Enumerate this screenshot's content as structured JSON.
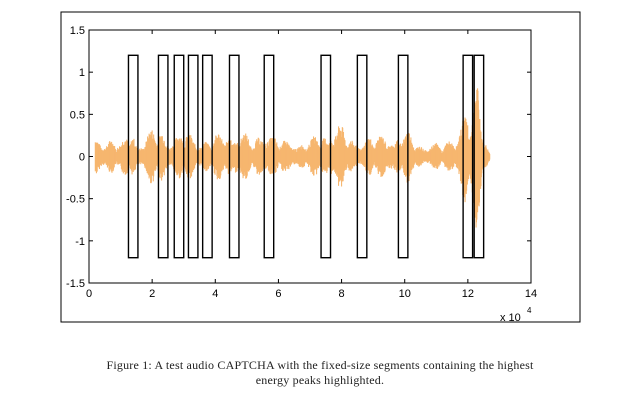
{
  "chart_data": {
    "type": "line",
    "xlim": [
      0,
      14
    ],
    "ylim": [
      -1.5,
      1.5
    ],
    "xticks": [
      "0",
      "2",
      "4",
      "6",
      "8",
      "10",
      "12",
      "14"
    ],
    "yticks": [
      "1.5",
      "1",
      "0.5",
      "0",
      "-0.5",
      "-1",
      "-1.5"
    ],
    "x_multiplier": "x 10",
    "x_multiplier_exp": "4",
    "series_color": "#f6b66f",
    "box_color": "#000000",
    "waveform_envelope": {
      "x": [
        0.2,
        0.7,
        1.0,
        1.4,
        1.6,
        2.0,
        2.3,
        2.5,
        2.8,
        3.1,
        3.3,
        3.6,
        3.8,
        4.2,
        4.6,
        4.8,
        5.2,
        5.6,
        5.8,
        6.2,
        6.6,
        7.0,
        7.4,
        7.7,
        8.0,
        8.4,
        8.8,
        9.2,
        9.6,
        10.0,
        10.4,
        10.8,
        11.2,
        11.6,
        11.9,
        12.1,
        12.3,
        12.5,
        12.7
      ],
      "amplitude": [
        0.25,
        0.3,
        0.15,
        0.45,
        0.2,
        0.35,
        0.4,
        0.3,
        0.3,
        0.35,
        0.25,
        0.3,
        0.25,
        0.3,
        0.45,
        0.35,
        0.2,
        0.45,
        0.3,
        0.2,
        0.25,
        0.2,
        0.35,
        0.5,
        0.4,
        0.2,
        0.3,
        0.25,
        0.35,
        0.35,
        0.2,
        0.2,
        0.15,
        0.3,
        0.75,
        0.55,
        0.95,
        0.4,
        0.12
      ]
    },
    "segments": [
      {
        "x_start": 1.25,
        "x_end": 1.55,
        "y_bottom": -1.2,
        "y_top": 1.2
      },
      {
        "x_start": 2.2,
        "x_end": 2.5,
        "y_bottom": -1.2,
        "y_top": 1.2
      },
      {
        "x_start": 2.7,
        "x_end": 3.0,
        "y_bottom": -1.2,
        "y_top": 1.2
      },
      {
        "x_start": 3.15,
        "x_end": 3.45,
        "y_bottom": -1.2,
        "y_top": 1.2
      },
      {
        "x_start": 3.6,
        "x_end": 3.9,
        "y_bottom": -1.2,
        "y_top": 1.2
      },
      {
        "x_start": 4.45,
        "x_end": 4.75,
        "y_bottom": -1.2,
        "y_top": 1.2
      },
      {
        "x_start": 5.55,
        "x_end": 5.85,
        "y_bottom": -1.2,
        "y_top": 1.2
      },
      {
        "x_start": 7.35,
        "x_end": 7.65,
        "y_bottom": -1.2,
        "y_top": 1.2
      },
      {
        "x_start": 8.5,
        "x_end": 8.8,
        "y_bottom": -1.2,
        "y_top": 1.2
      },
      {
        "x_start": 9.8,
        "x_end": 10.1,
        "y_bottom": -1.2,
        "y_top": 1.2
      },
      {
        "x_start": 11.85,
        "x_end": 12.15,
        "y_bottom": -1.2,
        "y_top": 1.2
      },
      {
        "x_start": 12.2,
        "x_end": 12.5,
        "y_bottom": -1.2,
        "y_top": 1.2
      }
    ]
  },
  "caption": {
    "line1": "Figure 1: A test audio CAPTCHA with the fixed-size segments containing the highest",
    "line2": "energy peaks highlighted."
  }
}
